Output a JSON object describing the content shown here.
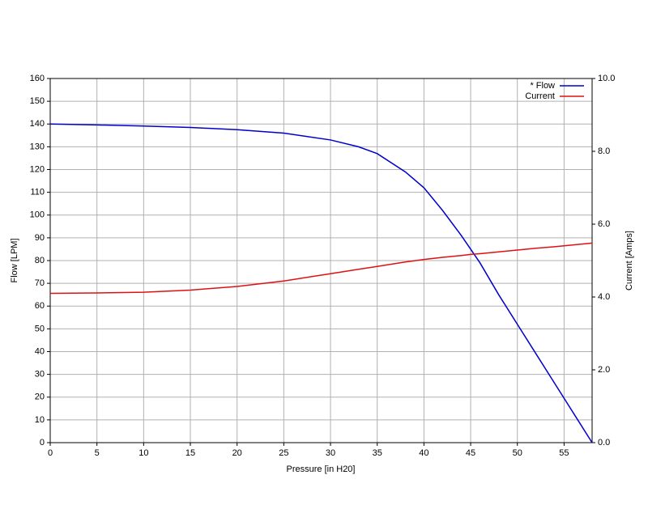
{
  "chart_data": {
    "type": "line",
    "xlabel": "Pressure [in H20]",
    "ylabel": "Flow [LPM]",
    "y2label": "Current [Amps]",
    "x": [
      0,
      5,
      10,
      15,
      20,
      25,
      30,
      33,
      35,
      38,
      40,
      42,
      44,
      45,
      46,
      48,
      50,
      52,
      54,
      56,
      58
    ],
    "series": [
      {
        "name": "* Flow",
        "color": "#0000cc",
        "values": [
          140,
          139.6,
          139.1,
          138.5,
          137.5,
          136,
          133,
          130,
          127,
          119,
          112,
          102,
          91,
          85,
          79,
          65,
          52,
          39,
          26,
          13,
          0
        ]
      },
      {
        "name": "Current",
        "color": "#dd1111",
        "axis": "y2",
        "values": [
          4.1,
          4.11,
          4.13,
          4.19,
          4.29,
          4.44,
          4.64,
          4.76,
          4.84,
          4.96,
          5.03,
          5.09,
          5.14,
          5.17,
          5.19,
          5.24,
          5.29,
          5.34,
          5.38,
          5.43,
          5.48
        ]
      }
    ],
    "xlim": [
      0,
      58
    ],
    "xticks": [
      0,
      5,
      10,
      15,
      20,
      25,
      30,
      35,
      40,
      45,
      50,
      55
    ],
    "ylim": [
      0,
      160
    ],
    "yticks": [
      0,
      10,
      20,
      30,
      40,
      50,
      60,
      70,
      80,
      90,
      100,
      110,
      120,
      130,
      140,
      150,
      160
    ],
    "y2lim": [
      0,
      10
    ],
    "y2ticks": [
      {
        "value": 0,
        "label": "0.0"
      },
      {
        "value": 2,
        "label": "2.0"
      },
      {
        "value": 4,
        "label": "4.0"
      },
      {
        "value": 6,
        "label": "6.0"
      },
      {
        "value": 8,
        "label": "8.0"
      },
      {
        "value": 10,
        "label": "10.0"
      }
    ],
    "grid": true,
    "legend": "upper-right"
  }
}
